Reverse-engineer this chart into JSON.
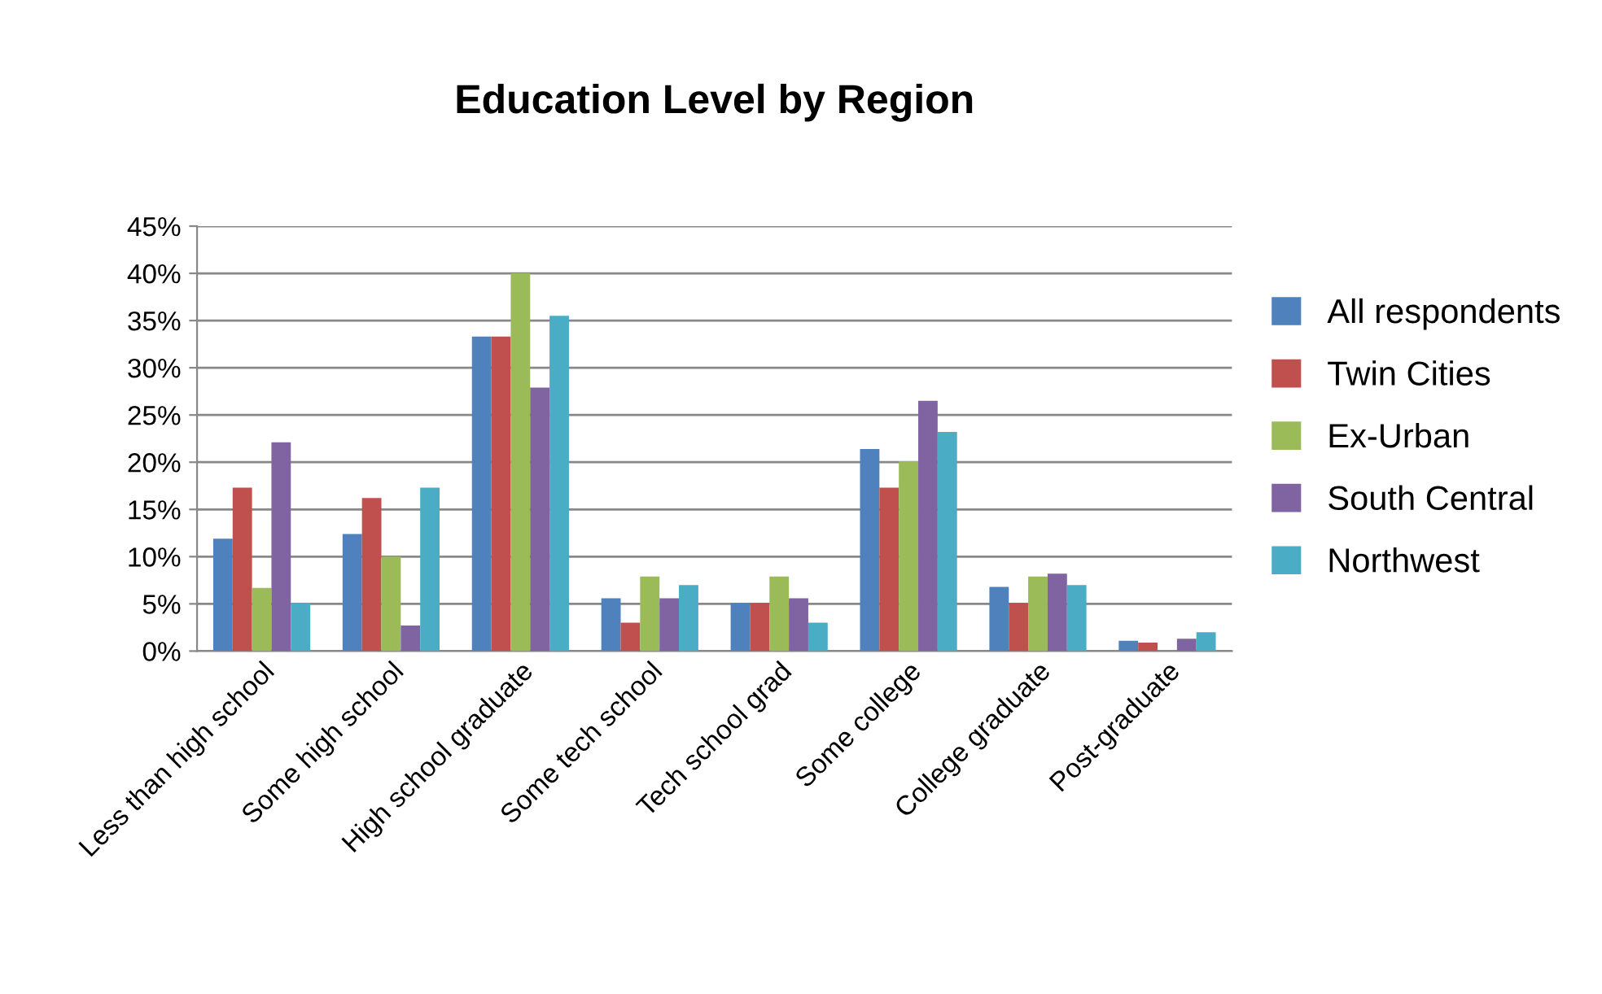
{
  "chart_data": {
    "type": "bar",
    "title": "Education Level by Region",
    "categories": [
      "Less than high school",
      "Some high school",
      "High school graduate",
      "Some tech school",
      "Tech school grad",
      "Some college",
      "College graduate",
      "Post-graduate"
    ],
    "series": [
      {
        "name": "All respondents",
        "color": "#4f81bd",
        "values": [
          11.9,
          12.4,
          33.3,
          5.6,
          5.1,
          21.4,
          6.8,
          1.1
        ]
      },
      {
        "name": "Twin Cities",
        "color": "#c0504d",
        "values": [
          17.3,
          16.2,
          33.3,
          3.0,
          5.1,
          17.3,
          5.1,
          0.9
        ]
      },
      {
        "name": "Ex-Urban",
        "color": "#9bbb59",
        "values": [
          6.7,
          10.0,
          40.0,
          7.9,
          7.9,
          20.1,
          7.9,
          0
        ]
      },
      {
        "name": "South Central",
        "color": "#8064a2",
        "values": [
          22.1,
          2.7,
          27.9,
          5.6,
          5.6,
          26.5,
          8.2,
          1.3
        ]
      },
      {
        "name": "Northwest",
        "color": "#4bacc6",
        "values": [
          5.1,
          17.3,
          35.5,
          7.0,
          3.0,
          23.2,
          7.0,
          2.0
        ]
      }
    ],
    "ylim": [
      0,
      45
    ],
    "yticks": [
      {
        "value": 0,
        "label": "0%"
      },
      {
        "value": 5,
        "label": "5%"
      },
      {
        "value": 10,
        "label": "10%"
      },
      {
        "value": 15,
        "label": "15%"
      },
      {
        "value": 20,
        "label": "20%"
      },
      {
        "value": 25,
        "label": "25%"
      },
      {
        "value": 30,
        "label": "30%"
      },
      {
        "value": 35,
        "label": "35%"
      },
      {
        "value": 40,
        "label": "40%"
      },
      {
        "value": 45,
        "label": "45%"
      }
    ],
    "grid": "y",
    "legend": "right"
  }
}
